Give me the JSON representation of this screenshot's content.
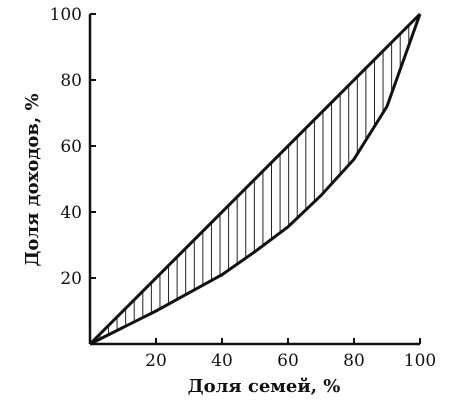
{
  "chart_data": {
    "type": "line",
    "title": "",
    "xlabel": "Доля семей, %",
    "ylabel": "Доля доходов, %",
    "xlim": [
      0,
      100
    ],
    "ylim": [
      0,
      100
    ],
    "x_ticks": [
      "20",
      "40",
      "60",
      "80",
      "100"
    ],
    "y_ticks": [
      "20",
      "40",
      "60",
      "80",
      "100"
    ],
    "grid": false,
    "shaded_area": "between equality line and Lorenz curve (vertical hatching)",
    "series": [
      {
        "x": [
          0,
          100
        ],
        "y": [
          0,
          100
        ]
      },
      {
        "x": [
          0,
          10,
          20,
          30,
          40,
          50,
          60,
          70,
          80,
          90,
          100
        ],
        "y": [
          0,
          5,
          10,
          15.5,
          21,
          28,
          35.5,
          45,
          56,
          72,
          100
        ]
      }
    ]
  }
}
